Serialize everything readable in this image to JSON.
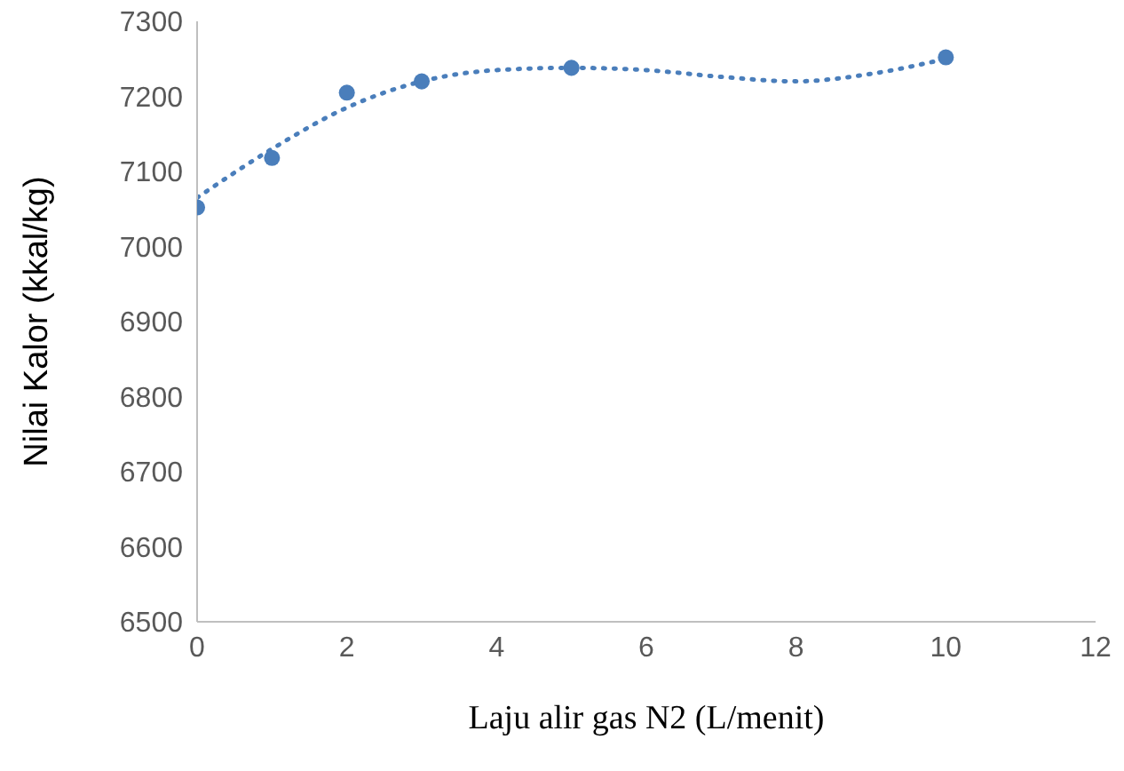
{
  "chart_data": {
    "type": "scatter",
    "xlabel": "Laju alir gas N2 (L/menit)",
    "ylabel": "Nilai Kalor (kkal/kg)",
    "x": [
      0,
      1,
      2,
      3,
      5,
      10
    ],
    "xlim": [
      0,
      12
    ],
    "xticks": [
      0,
      2,
      4,
      6,
      8,
      10,
      12
    ],
    "ylim": [
      6500,
      7300
    ],
    "yticks": [
      6500,
      6600,
      6700,
      6800,
      6900,
      7000,
      7100,
      7200,
      7300
    ],
    "marker": "circle",
    "series": [
      {
        "color": "#4a7ebb",
        "values": [
          7052,
          7118,
          7205,
          7220,
          7238,
          7252
        ]
      },
      {
        "type": "line",
        "color": "#4a7ebb",
        "line_style": "dotted",
        "marker": "none",
        "x": [
          0,
          1,
          2,
          3,
          4,
          5,
          6,
          7,
          8,
          9,
          10
        ],
        "values": [
          7065,
          7130,
          7185,
          7220,
          7235,
          7238,
          7235,
          7226,
          7220,
          7230,
          7250
        ]
      }
    ]
  }
}
